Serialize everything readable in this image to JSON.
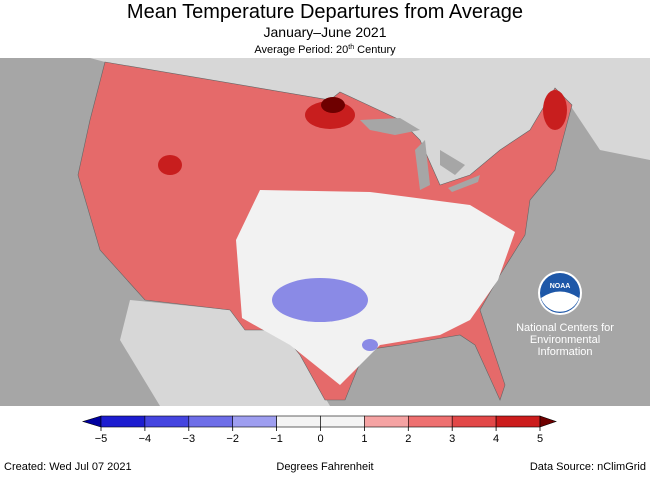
{
  "header": {
    "title": "Mean Temperature Departures from Average",
    "subtitle": "January–June 2021",
    "period": {
      "prefix": "Average Period: 20",
      "sup": "th",
      "suffix": "Century"
    }
  },
  "logo": {
    "name": "NOAA",
    "lines": [
      "National Centers for",
      "Environmental",
      "Information"
    ]
  },
  "legend": {
    "label": "Degrees Fahrenheit",
    "ticks": [
      {
        "value": -5,
        "label": "−5"
      },
      {
        "value": -4,
        "label": "−4"
      },
      {
        "value": -3,
        "label": "−3"
      },
      {
        "value": -2,
        "label": "−2"
      },
      {
        "value": -1,
        "label": "−1"
      },
      0,
      1,
      2,
      3,
      4,
      5
    ],
    "colors": [
      "#0000a0",
      "#1c1cd0",
      "#4545e0",
      "#6e6ee8",
      "#9e9ef0",
      "#f4f4f4",
      "#f4f4f4",
      "#f5a3a3",
      "#ee7070",
      "#e24848",
      "#cc1c1c",
      "#6e0000"
    ]
  },
  "footer": {
    "created": "Created: Wed Jul 07 2021",
    "source": "Data Source: nClimGrid"
  }
}
